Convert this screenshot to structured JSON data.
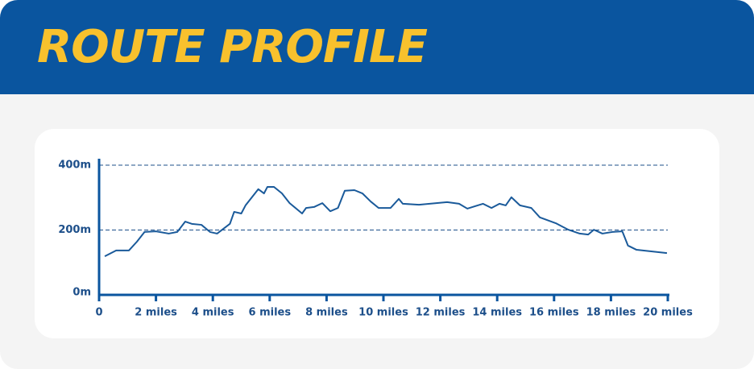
{
  "header": {
    "title": "ROUTE PROFILE"
  },
  "chart_data": {
    "type": "line",
    "x": [
      0.2,
      0.6,
      1.05,
      1.33,
      1.6,
      2.0,
      2.45,
      2.75,
      3.03,
      3.26,
      3.6,
      3.9,
      4.15,
      4.6,
      4.75,
      5.0,
      5.15,
      5.6,
      5.8,
      5.92,
      6.15,
      6.43,
      6.7,
      7.14,
      7.28,
      7.56,
      7.85,
      8.13,
      8.4,
      8.64,
      8.98,
      9.26,
      9.55,
      9.83,
      10.25,
      10.54,
      10.68,
      11.25,
      12.24,
      12.66,
      12.95,
      13.5,
      13.8,
      14.08,
      14.3,
      14.5,
      14.8,
      15.2,
      15.5,
      16.06,
      16.5,
      16.9,
      17.2,
      17.4,
      17.7,
      18.05,
      18.4,
      18.6,
      18.9,
      19.97
    ],
    "series": [
      {
        "color": "#1a5a9a",
        "values": [
          119,
          137,
          137,
          164,
          194,
          196,
          189,
          194,
          226,
          219,
          216,
          194,
          189,
          219,
          256,
          251,
          276,
          326,
          313,
          333,
          333,
          313,
          283,
          251,
          268,
          271,
          283,
          258,
          268,
          321,
          323,
          313,
          288,
          268,
          268,
          296,
          281,
          278,
          286,
          281,
          266,
          281,
          268,
          281,
          276,
          301,
          276,
          268,
          239,
          221,
          201,
          189,
          186,
          201,
          189,
          194,
          196,
          152,
          139,
          129
        ]
      }
    ],
    "xlim": [
      0,
      20
    ],
    "xticks": [
      0,
      {
        "value": 2,
        "label": "2 miles"
      },
      {
        "value": 4,
        "label": "4 miles"
      },
      {
        "value": 6,
        "label": "6 miles"
      },
      {
        "value": 8,
        "label": "8 miles"
      },
      {
        "value": 10,
        "label": "10 miles"
      },
      {
        "value": 12,
        "label": "12 miles"
      },
      {
        "value": 14,
        "label": "14 miles"
      },
      {
        "value": 16,
        "label": "16 miles"
      },
      {
        "value": 18,
        "label": "18 miles"
      },
      {
        "value": 20,
        "label": "20 miles"
      }
    ],
    "ylim": [
      0,
      400
    ],
    "yticks": [
      {
        "value": 0,
        "label": "0m"
      },
      {
        "value": 200,
        "label": "200m"
      },
      {
        "value": 400,
        "label": "400m"
      }
    ],
    "grid": true
  }
}
